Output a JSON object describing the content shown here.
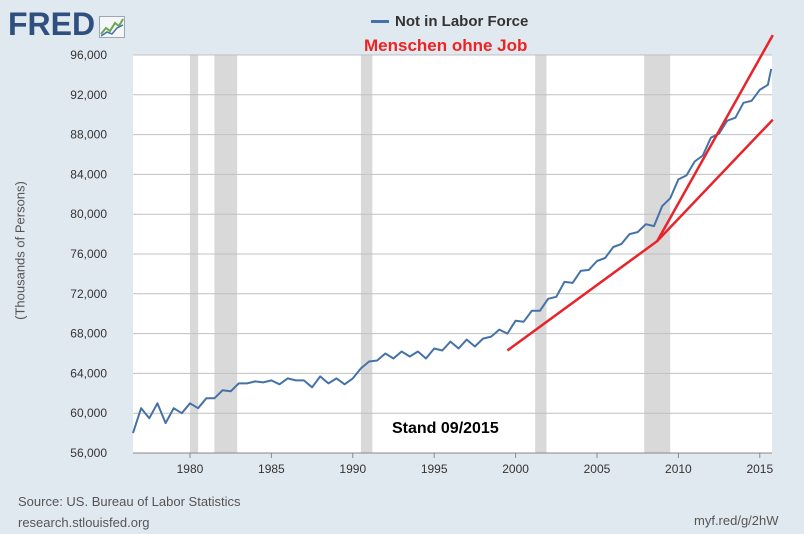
{
  "header": {
    "logo_text": "FRED",
    "logo_icon": "line-chart-icon"
  },
  "legend": {
    "label": "Not in Labor Force"
  },
  "annotations": {
    "title": "Menschen ohne Job",
    "stand": "Stand 09/2015"
  },
  "footer": {
    "source": "Source: US. Bureau of Labor Statistics",
    "url": "research.stlouisfed.org",
    "short_url": "myf.red/g/2hW"
  },
  "colors": {
    "series": "#4572a7",
    "trend": "#e8232a",
    "recession": "#d9d9d9",
    "background": "#e1e9f0",
    "plot_background": "#ffffff"
  },
  "chart_data": {
    "type": "line",
    "ylabel": "(Thousands of Persons)",
    "xlabel": "",
    "grid": true,
    "xlim": [
      1976.5,
      2015.75
    ],
    "ylim": [
      56000,
      96000
    ],
    "x_ticks": [
      "1980",
      "1985",
      "1990",
      "1995",
      "2000",
      "2005",
      "2010",
      "2015"
    ],
    "y_ticks": [
      "56,000",
      "60,000",
      "64,000",
      "68,000",
      "72,000",
      "76,000",
      "80,000",
      "84,000",
      "88,000",
      "92,000",
      "96,000"
    ],
    "recessions": [
      [
        1980.0,
        1980.5
      ],
      [
        1981.5,
        1982.9
      ],
      [
        1990.5,
        1991.2
      ],
      [
        2001.2,
        2001.9
      ],
      [
        2007.9,
        2009.5
      ]
    ],
    "series": [
      {
        "name": "Not in Labor Force",
        "x": [
          1976.5,
          1977,
          1977.5,
          1978,
          1978.5,
          1979,
          1979.5,
          1980,
          1980.5,
          1981,
          1981.5,
          1982,
          1982.5,
          1983,
          1983.5,
          1984,
          1984.5,
          1985,
          1985.5,
          1986,
          1986.5,
          1987,
          1987.5,
          1988,
          1988.5,
          1989,
          1989.5,
          1990,
          1990.5,
          1991,
          1991.5,
          1992,
          1992.5,
          1993,
          1993.5,
          1994,
          1994.5,
          1995,
          1995.5,
          1996,
          1996.5,
          1997,
          1997.5,
          1998,
          1998.5,
          1999,
          1999.5,
          2000,
          2000.5,
          2001,
          2001.5,
          2002,
          2002.5,
          2003,
          2003.5,
          2004,
          2004.5,
          2005,
          2005.5,
          2006,
          2006.5,
          2007,
          2007.5,
          2008,
          2008.5,
          2009,
          2009.5,
          2010,
          2010.5,
          2011,
          2011.5,
          2012,
          2012.5,
          2013,
          2013.5,
          2014,
          2014.5,
          2015,
          2015.5,
          2015.7
        ],
        "y": [
          58000,
          60500,
          59500,
          61000,
          59000,
          60500,
          60000,
          61000,
          60500,
          61500,
          61500,
          62300,
          62200,
          63000,
          63000,
          63200,
          63100,
          63300,
          62900,
          63500,
          63300,
          63300,
          62600,
          63700,
          63000,
          63500,
          62900,
          63500,
          64500,
          65200,
          65300,
          66000,
          65500,
          66200,
          65700,
          66200,
          65500,
          66500,
          66300,
          67200,
          66500,
          67400,
          66700,
          67500,
          67700,
          68400,
          68000,
          69300,
          69200,
          70300,
          70300,
          71500,
          71700,
          73200,
          73100,
          74300,
          74400,
          75300,
          75600,
          76700,
          77000,
          78000,
          78200,
          79000,
          78800,
          80800,
          81600,
          83500,
          83900,
          85300,
          85900,
          87700,
          88100,
          89400,
          89700,
          91200,
          91400,
          92500,
          93000,
          94600
        ]
      }
    ],
    "trend_lines": [
      {
        "x": [
          1999.5,
          2008.7,
          2015.8
        ],
        "y": [
          66300,
          77300,
          89500
        ]
      },
      {
        "x": [
          2008.7,
          2015.8
        ],
        "y": [
          77300,
          98000
        ]
      }
    ]
  }
}
